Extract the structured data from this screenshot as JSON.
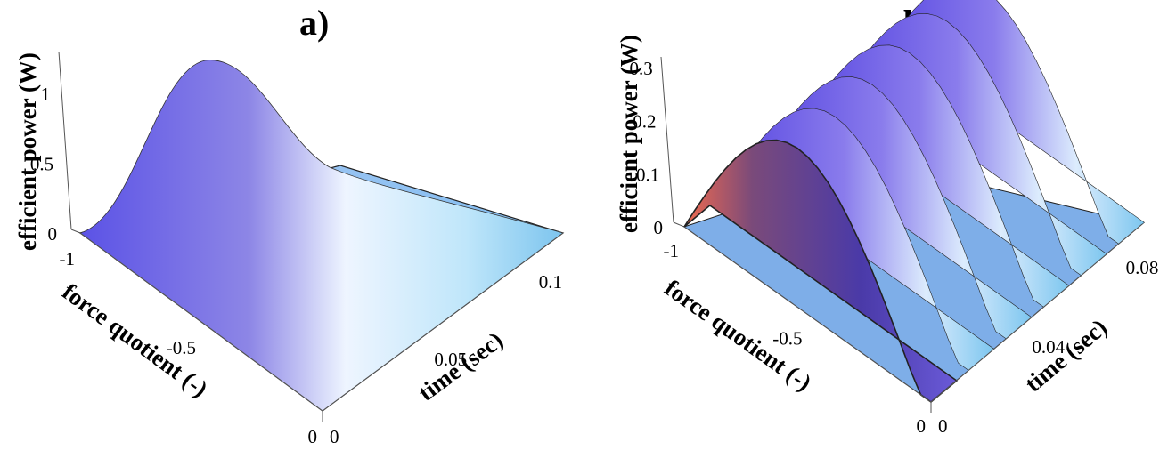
{
  "chart_data": [
    {
      "type": "surface3d",
      "panel_label": "a)",
      "zlabel": "efficient power (W)",
      "xlabel": "force quotient (-)",
      "ylabel": "time  (sec)",
      "x_ticks": [
        "-1",
        "-0.5",
        "0"
      ],
      "y_ticks": [
        "0",
        "0.05",
        "0.1"
      ],
      "z_ticks": [
        "0",
        "0.5",
        "1"
      ],
      "xlim": [
        -1,
        0
      ],
      "ylim": [
        0,
        0.115
      ],
      "zlim": [
        0,
        1.3
      ],
      "peak": {
        "force_quotient": -0.75,
        "time": 0.0,
        "power": 1.2
      },
      "colors": {
        "low": "#6a5ae0",
        "mid": "#eef6ff",
        "high": "#78c4f0"
      }
    },
    {
      "type": "surface3d",
      "panel_label": "b)",
      "zlabel": "efficient power (W)",
      "xlabel": "force quotient (-)",
      "ylabel": "time  (sec)",
      "x_ticks": [
        "-1",
        "-0.5",
        "0"
      ],
      "y_ticks": [
        "0",
        "0.04",
        "0.08"
      ],
      "z_ticks": [
        "0",
        "0.1",
        "0.2",
        "0.3"
      ],
      "xlim": [
        -1,
        0
      ],
      "ylim": [
        0,
        0.09
      ],
      "zlim": [
        0,
        0.32
      ],
      "peaks_time": [
        0.0,
        0.016,
        0.032,
        0.048,
        0.064,
        0.08
      ],
      "peak_power": 0.3,
      "colors": {
        "low": "#5c48e8",
        "mid": "#f2f8ff",
        "high": "#8fd0ef",
        "warm": "#e07a6a"
      }
    }
  ]
}
